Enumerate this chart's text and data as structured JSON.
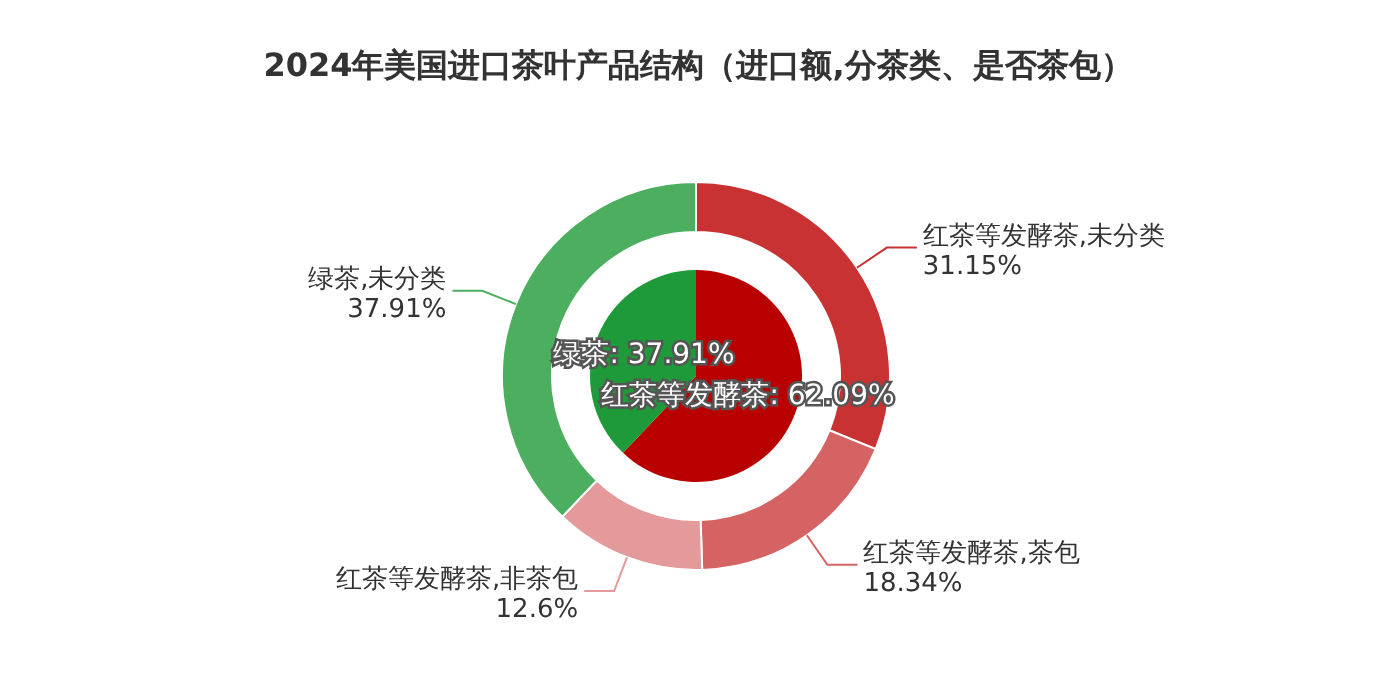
{
  "chart_data": [
    {
      "type": "pie",
      "title": "2024年美国进口茶叶产品结构（进口额,分茶类、是否茶包）",
      "categories": [
        "红茶等发酵茶",
        "绿茶"
      ],
      "values": [
        62.09,
        37.91
      ],
      "colors": [
        "#b80000",
        "#1f9a3a"
      ],
      "value_labels": [
        "62.09%",
        "37.91%"
      ]
    },
    {
      "type": "donut",
      "categories": [
        "红茶等发酵茶,未分类",
        "红茶等发酵茶,茶包",
        "红茶等发酵茶,非茶包",
        "绿茶,未分类"
      ],
      "values": [
        31.15,
        18.34,
        12.6,
        37.91
      ],
      "colors": [
        "#c83232",
        "#d66363",
        "#e49a9a",
        "#4caf5f"
      ],
      "value_labels": [
        "31.15%",
        "18.34%",
        "12.6%",
        "37.91%"
      ]
    }
  ]
}
